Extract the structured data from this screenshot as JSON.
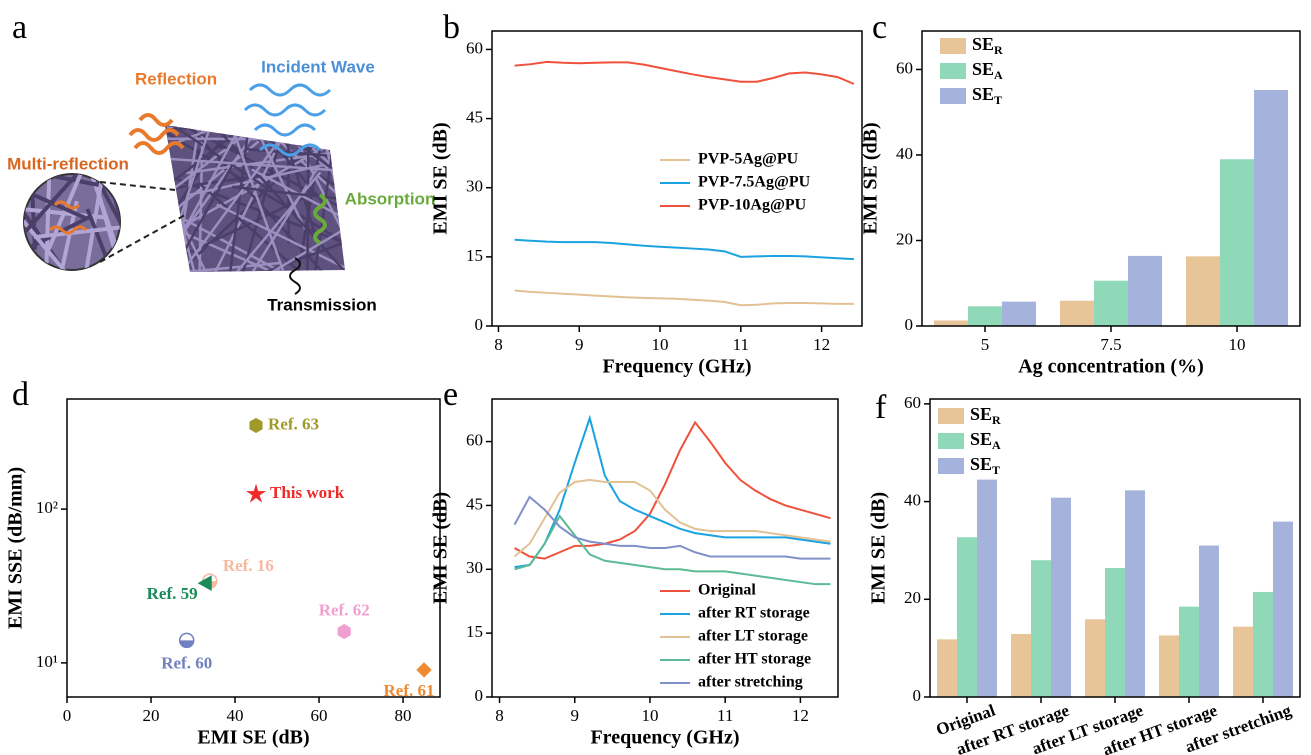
{
  "panels": {
    "labels": [
      "a",
      "b",
      "c",
      "d",
      "e",
      "f"
    ]
  },
  "illustration": {
    "labels": [
      "Reflection",
      "Incident Wave",
      "Multi-reflection",
      "Absorption",
      "Transmission"
    ]
  },
  "chart_data": [
    {
      "type": "line",
      "xlabel": "Frequency (GHz)",
      "ylabel": "EMI SE (dB)",
      "x": [
        8.2,
        8.4,
        8.6,
        8.8,
        9.0,
        9.2,
        9.4,
        9.6,
        9.8,
        10.0,
        10.2,
        10.4,
        10.6,
        10.8,
        11.0,
        11.2,
        11.4,
        11.6,
        11.8,
        12.0,
        12.2,
        12.4
      ],
      "xlim": [
        7.92,
        12.5
      ],
      "xticks": [
        8,
        9,
        10,
        11,
        12
      ],
      "ylim": [
        0,
        64
      ],
      "yticks": [
        0,
        15,
        30,
        45,
        60
      ],
      "series": [
        {
          "name": "PVP-5Ag@PU",
          "color": "#e2c295",
          "values": [
            7.7,
            7.4,
            7.2,
            7.0,
            6.8,
            6.6,
            6.4,
            6.2,
            6.1,
            6.0,
            5.9,
            5.7,
            5.5,
            5.2,
            4.5,
            4.6,
            4.9,
            5.0,
            5.0,
            4.9,
            4.8,
            4.8
          ]
        },
        {
          "name": "PVP-7.5Ag@PU",
          "color": "#1aa3e0",
          "values": [
            18.7,
            18.5,
            18.3,
            18.2,
            18.2,
            18.2,
            18.0,
            17.7,
            17.4,
            17.2,
            17.0,
            16.8,
            16.6,
            16.2,
            15.0,
            15.1,
            15.2,
            15.2,
            15.1,
            14.9,
            14.7,
            14.5
          ]
        },
        {
          "name": "PVP-10Ag@PU",
          "color": "#f0513d",
          "values": [
            56.5,
            56.8,
            57.3,
            57.1,
            57.0,
            57.1,
            57.2,
            57.2,
            56.7,
            56.0,
            55.3,
            54.6,
            54.0,
            53.5,
            53.0,
            53.0,
            53.8,
            54.8,
            55.0,
            54.6,
            54.0,
            52.5
          ]
        }
      ]
    },
    {
      "type": "bar",
      "xlabel": "Ag concentration (%)",
      "ylabel": "EMI SE (dB)",
      "categories": [
        "5",
        "7.5",
        "10"
      ],
      "ylim": [
        0,
        69
      ],
      "yticks": [
        0,
        20,
        40,
        60
      ],
      "series": [
        {
          "name": "SE",
          "sub": "R",
          "color": "#e8c598",
          "values": [
            1.3,
            5.9,
            16.3
          ]
        },
        {
          "name": "SE",
          "sub": "A",
          "color": "#8fd8b8",
          "values": [
            4.6,
            10.6,
            39
          ]
        },
        {
          "name": "SE",
          "sub": "T",
          "color": "#a5b3dc",
          "values": [
            5.7,
            16.4,
            55.2
          ]
        }
      ]
    },
    {
      "type": "scatter",
      "xlabel": "EMI SE (dB)",
      "ylabel": "EMI SSE (dB/mm)",
      "ylog": true,
      "xlim": [
        0,
        88.8
      ],
      "xticks": [
        0,
        20,
        40,
        60,
        80
      ],
      "ylim": [
        6,
        520
      ],
      "yticks": [
        {
          "value": 10,
          "label": "10¹"
        },
        {
          "value": 100,
          "label": "10²"
        }
      ],
      "points": [
        {
          "label": "Ref. 63",
          "x": 45,
          "y": 350,
          "color": "#a09a2a",
          "marker": "hexagon"
        },
        {
          "label": "This work",
          "x": 45,
          "y": 125,
          "color": "#ee2a2a",
          "marker": "star"
        },
        {
          "label": "Ref. 16",
          "x": 34,
          "y": 34,
          "color": "#f5b9a0",
          "marker": "circle"
        },
        {
          "label": "Ref. 59",
          "x": 33,
          "y": 33,
          "color": "#1a8a5a",
          "marker": "triangle"
        },
        {
          "label": "Ref. 62",
          "x": 66,
          "y": 16,
          "color": "#f0a0d0",
          "marker": "hexagon"
        },
        {
          "label": "Ref. 60",
          "x": 28.5,
          "y": 14,
          "color": "#7080c0",
          "marker": "circle"
        },
        {
          "label": "Ref. 61",
          "x": 85,
          "y": 9,
          "color": "#f08a30",
          "marker": "diamond"
        }
      ]
    },
    {
      "type": "line",
      "xlabel": "Frequency (GHz)",
      "ylabel": "EMI SE (dB)",
      "x": [
        8.2,
        8.4,
        8.6,
        8.8,
        9.0,
        9.2,
        9.4,
        9.6,
        9.8,
        10.0,
        10.2,
        10.4,
        10.6,
        10.8,
        11.0,
        11.2,
        11.4,
        11.6,
        11.8,
        12.0,
        12.2,
        12.4
      ],
      "xlim": [
        7.9,
        12.5
      ],
      "xticks": [
        8,
        9,
        10,
        11,
        12
      ],
      "ylim": [
        0,
        70
      ],
      "yticks": [
        0,
        15,
        30,
        45,
        60
      ],
      "series": [
        {
          "name": "Original",
          "color": "#f0513d",
          "values": [
            35,
            33,
            32.5,
            34,
            35.5,
            35.5,
            36,
            37,
            39,
            43,
            50,
            58,
            64.5,
            60,
            55,
            51,
            48.5,
            46.5,
            45,
            44,
            43,
            42
          ]
        },
        {
          "name": "after RT storage",
          "color": "#1aa3e0",
          "values": [
            30.5,
            31,
            36,
            44,
            55,
            65.5,
            52,
            46,
            44,
            42.5,
            41,
            39.5,
            38.5,
            38,
            37.5,
            37.5,
            37.5,
            37.5,
            37.5,
            37,
            36.5,
            36
          ]
        },
        {
          "name": "after LT storage",
          "color": "#e2c295",
          "values": [
            33,
            36,
            42,
            48,
            50.5,
            51,
            50.5,
            50.5,
            50.5,
            48.5,
            44,
            41,
            39.5,
            39,
            39,
            39,
            39,
            38.5,
            38,
            37.5,
            37,
            36.5
          ]
        },
        {
          "name": "after HT storage",
          "color": "#5cba94",
          "values": [
            30,
            31,
            36,
            42.5,
            38,
            33.5,
            32,
            31.5,
            31,
            30.5,
            30,
            30,
            29.5,
            29.5,
            29.5,
            29,
            28.5,
            28,
            27.5,
            27,
            26.5,
            26.5
          ]
        },
        {
          "name": "after stretching",
          "color": "#8090c8",
          "values": [
            40.5,
            47,
            44,
            40,
            37.5,
            36.5,
            36,
            35.5,
            35.5,
            35,
            35,
            35.5,
            34,
            33,
            33,
            33,
            33,
            33,
            33,
            32.5,
            32.5,
            32.5
          ]
        }
      ]
    },
    {
      "type": "bar",
      "ylabel": "EMI SE (dB)",
      "categories": [
        "Original",
        "after RT storage",
        "after LT storage",
        "after HT storage",
        "after stretching"
      ],
      "ylim": [
        0,
        61
      ],
      "yticks": [
        0,
        20,
        40,
        60
      ],
      "series": [
        {
          "name": "SE",
          "sub": "R",
          "color": "#e8c598",
          "values": [
            11.8,
            12.9,
            15.9,
            12.6,
            14.4
          ]
        },
        {
          "name": "SE",
          "sub": "A",
          "color": "#8fd8b8",
          "values": [
            32.7,
            28,
            26.4,
            18.5,
            21.5
          ]
        },
        {
          "name": "SE",
          "sub": "T",
          "color": "#a5b3dc",
          "values": [
            44.5,
            40.8,
            42.3,
            31,
            35.9
          ]
        }
      ]
    }
  ]
}
